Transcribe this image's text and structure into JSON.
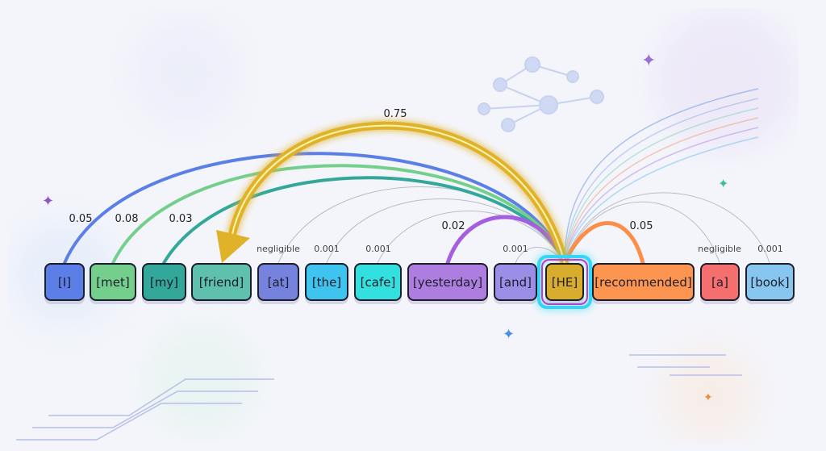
{
  "tokens": [
    {
      "text": "[I]",
      "color": "#5b7fe6"
    },
    {
      "text": "[met]",
      "color": "#74cf8c"
    },
    {
      "text": "[my]",
      "color": "#33a89a"
    },
    {
      "text": "[friend]",
      "color": "#5fc1ad"
    },
    {
      "text": "[at]",
      "color": "#7683de"
    },
    {
      "text": "[the]",
      "color": "#3ec4ef"
    },
    {
      "text": "[cafe]",
      "color": "#32e0e0"
    },
    {
      "text": "[yesterday]",
      "color": "#ad7ee0"
    },
    {
      "text": "[and]",
      "color": "#9b8ee6"
    },
    {
      "text": "[HE]",
      "color": "#d8ad2e"
    },
    {
      "text": "[recommended]",
      "color": "#fc9550"
    },
    {
      "text": "[a]",
      "color": "#f56f6f"
    },
    {
      "text": "[book]",
      "color": "#86c6ef"
    }
  ],
  "weights": {
    "I": "0.05",
    "met": "0.08",
    "my": "0.03",
    "friend": "0.75",
    "at": "negligible",
    "the": "0.001",
    "cafe": "0.001",
    "yesterday": "0.02",
    "and": "0.001",
    "recommended": "0.05",
    "a": "negligible",
    "book": "0.001"
  },
  "colors": {
    "focus_glow": "#35d6f5",
    "strong_attention": "#e0b22a"
  }
}
